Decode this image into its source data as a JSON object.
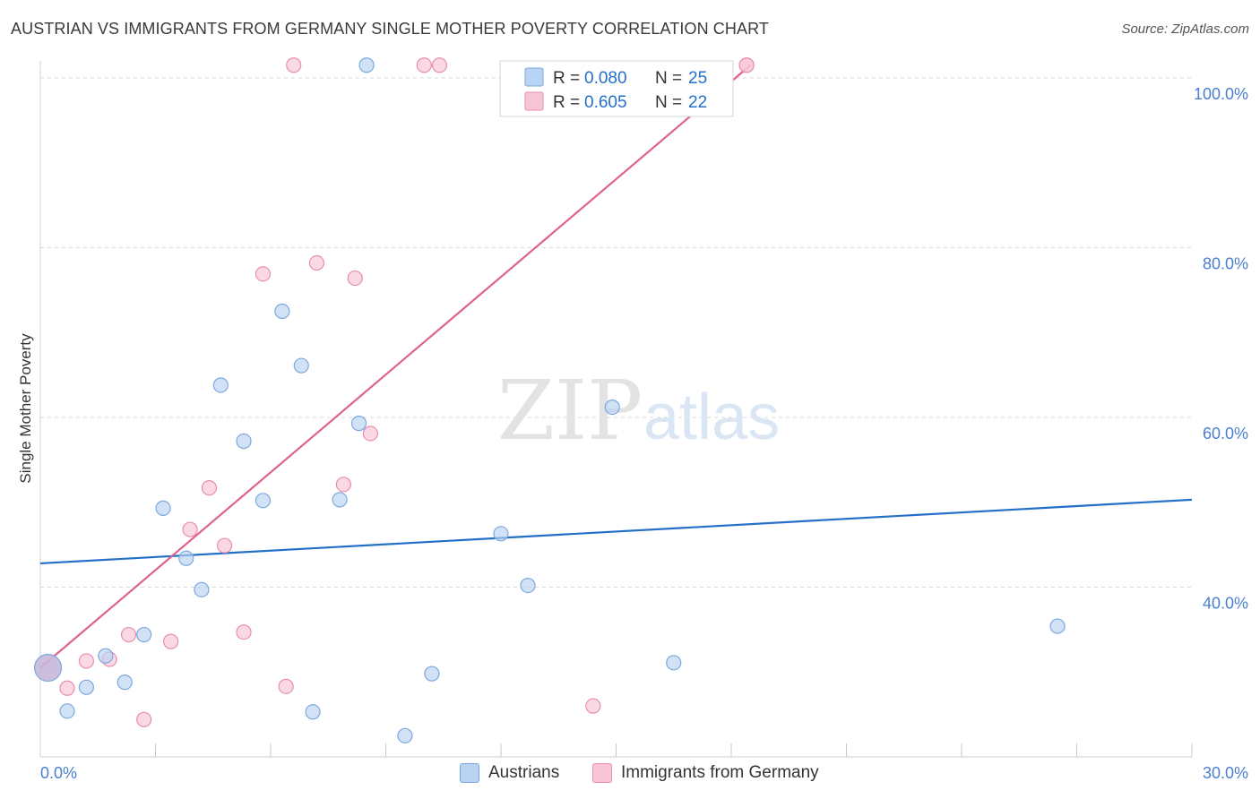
{
  "header": {
    "title": "AUSTRIAN VS IMMIGRANTS FROM GERMANY SINGLE MOTHER POVERTY CORRELATION CHART",
    "source": "Source: ZipAtlas.com"
  },
  "watermark": {
    "part1": "ZIP",
    "part2": "atlas"
  },
  "stats": [
    {
      "r_label": "R =",
      "r_value": "0.080",
      "n_label": "N =",
      "n_value": "25"
    },
    {
      "r_label": "R =",
      "r_value": "0.605",
      "n_label": "N =",
      "n_value": "22"
    }
  ],
  "colors": {
    "blue_fill": "#b9d3f3",
    "blue_stroke": "#7ca9de",
    "blue_line": "#2470c9",
    "pink_fill": "#f7c5d5",
    "pink_stroke": "#e88fae",
    "pink_line": "#e0628c",
    "axis_text": "#4a7fd0",
    "grid": "#d9d9d9"
  },
  "chart_data": {
    "type": "scatter",
    "title": "AUSTRIAN VS IMMIGRANTS FROM GERMANY SINGLE MOTHER POVERTY CORRELATION CHART",
    "xlabel": "",
    "ylabel": "Single Mother Poverty",
    "xlim": [
      0,
      30
    ],
    "ylim": [
      20,
      102
    ],
    "x_tick_labels": [
      "0.0%",
      "30.0%"
    ],
    "y_ticks": [
      40,
      60,
      80,
      100
    ],
    "y_tick_labels": [
      "40.0%",
      "60.0%",
      "80.0%",
      "100.0%"
    ],
    "grid": true,
    "legend_position": "bottom-center",
    "series": [
      {
        "name": "Austrians",
        "color": "#7ca9de",
        "r": 0.08,
        "n": 25,
        "trend": {
          "x": [
            0,
            30
          ],
          "y": [
            42.8,
            50.3
          ]
        },
        "points": [
          {
            "x": 0.2,
            "y": 30.5,
            "big": true
          },
          {
            "x": 0.7,
            "y": 25.4
          },
          {
            "x": 1.2,
            "y": 28.2
          },
          {
            "x": 1.7,
            "y": 31.9
          },
          {
            "x": 2.2,
            "y": 28.8
          },
          {
            "x": 2.7,
            "y": 34.4
          },
          {
            "x": 3.2,
            "y": 49.3
          },
          {
            "x": 3.8,
            "y": 43.4
          },
          {
            "x": 4.2,
            "y": 39.7
          },
          {
            "x": 4.7,
            "y": 63.8
          },
          {
            "x": 5.3,
            "y": 57.2
          },
          {
            "x": 5.8,
            "y": 50.2
          },
          {
            "x": 6.3,
            "y": 72.5
          },
          {
            "x": 6.8,
            "y": 66.1
          },
          {
            "x": 7.1,
            "y": 25.3
          },
          {
            "x": 7.8,
            "y": 50.3
          },
          {
            "x": 8.3,
            "y": 59.3
          },
          {
            "x": 8.5,
            "y": 101.5
          },
          {
            "x": 9.5,
            "y": 22.5
          },
          {
            "x": 10.2,
            "y": 29.8
          },
          {
            "x": 12.0,
            "y": 46.3
          },
          {
            "x": 12.7,
            "y": 40.2
          },
          {
            "x": 14.9,
            "y": 61.2
          },
          {
            "x": 16.5,
            "y": 31.1
          },
          {
            "x": 26.5,
            "y": 35.4
          }
        ]
      },
      {
        "name": "Immigrants from Germany",
        "color": "#e88fae",
        "r": 0.605,
        "n": 22,
        "trend": {
          "x": [
            0,
            18.5
          ],
          "y": [
            30.5,
            101.5
          ]
        },
        "points": [
          {
            "x": 0.7,
            "y": 28.1
          },
          {
            "x": 1.2,
            "y": 31.3
          },
          {
            "x": 1.8,
            "y": 31.5
          },
          {
            "x": 2.3,
            "y": 34.4
          },
          {
            "x": 2.7,
            "y": 24.4
          },
          {
            "x": 3.4,
            "y": 33.6
          },
          {
            "x": 3.9,
            "y": 46.8
          },
          {
            "x": 4.4,
            "y": 51.7
          },
          {
            "x": 4.8,
            "y": 44.9
          },
          {
            "x": 5.3,
            "y": 34.7
          },
          {
            "x": 5.8,
            "y": 76.9
          },
          {
            "x": 6.4,
            "y": 28.3
          },
          {
            "x": 6.6,
            "y": 101.5
          },
          {
            "x": 7.2,
            "y": 78.2
          },
          {
            "x": 7.9,
            "y": 52.1
          },
          {
            "x": 8.2,
            "y": 76.4
          },
          {
            "x": 8.6,
            "y": 58.1
          },
          {
            "x": 10.0,
            "y": 101.5
          },
          {
            "x": 10.4,
            "y": 101.5
          },
          {
            "x": 14.4,
            "y": 26.0
          },
          {
            "x": 18.4,
            "y": 101.5
          },
          {
            "x": 18.4,
            "y": 101.5
          }
        ]
      }
    ]
  }
}
